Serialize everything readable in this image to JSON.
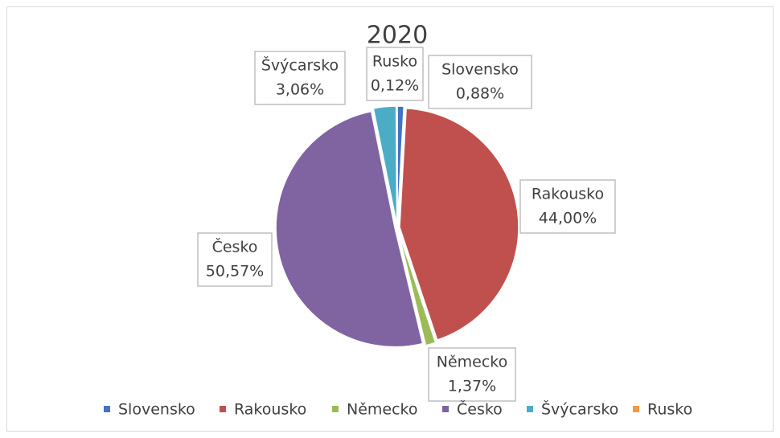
{
  "chart_data": {
    "type": "pie",
    "title": "2020",
    "categories": [
      "Slovensko",
      "Rakousko",
      "Německo",
      "Česko",
      "Švýcarsko",
      "Rusko"
    ],
    "values": [
      0.88,
      44.0,
      1.37,
      50.57,
      3.06,
      0.12
    ],
    "value_labels": [
      "0,88%",
      "44,00%",
      "1,37%",
      "50,57%",
      "3,06%",
      "0,12%"
    ],
    "colors": [
      "#4472c4",
      "#c0504d",
      "#9bbb59",
      "#8064a2",
      "#4bacc6",
      "#f79646"
    ],
    "legend": "bottom"
  }
}
